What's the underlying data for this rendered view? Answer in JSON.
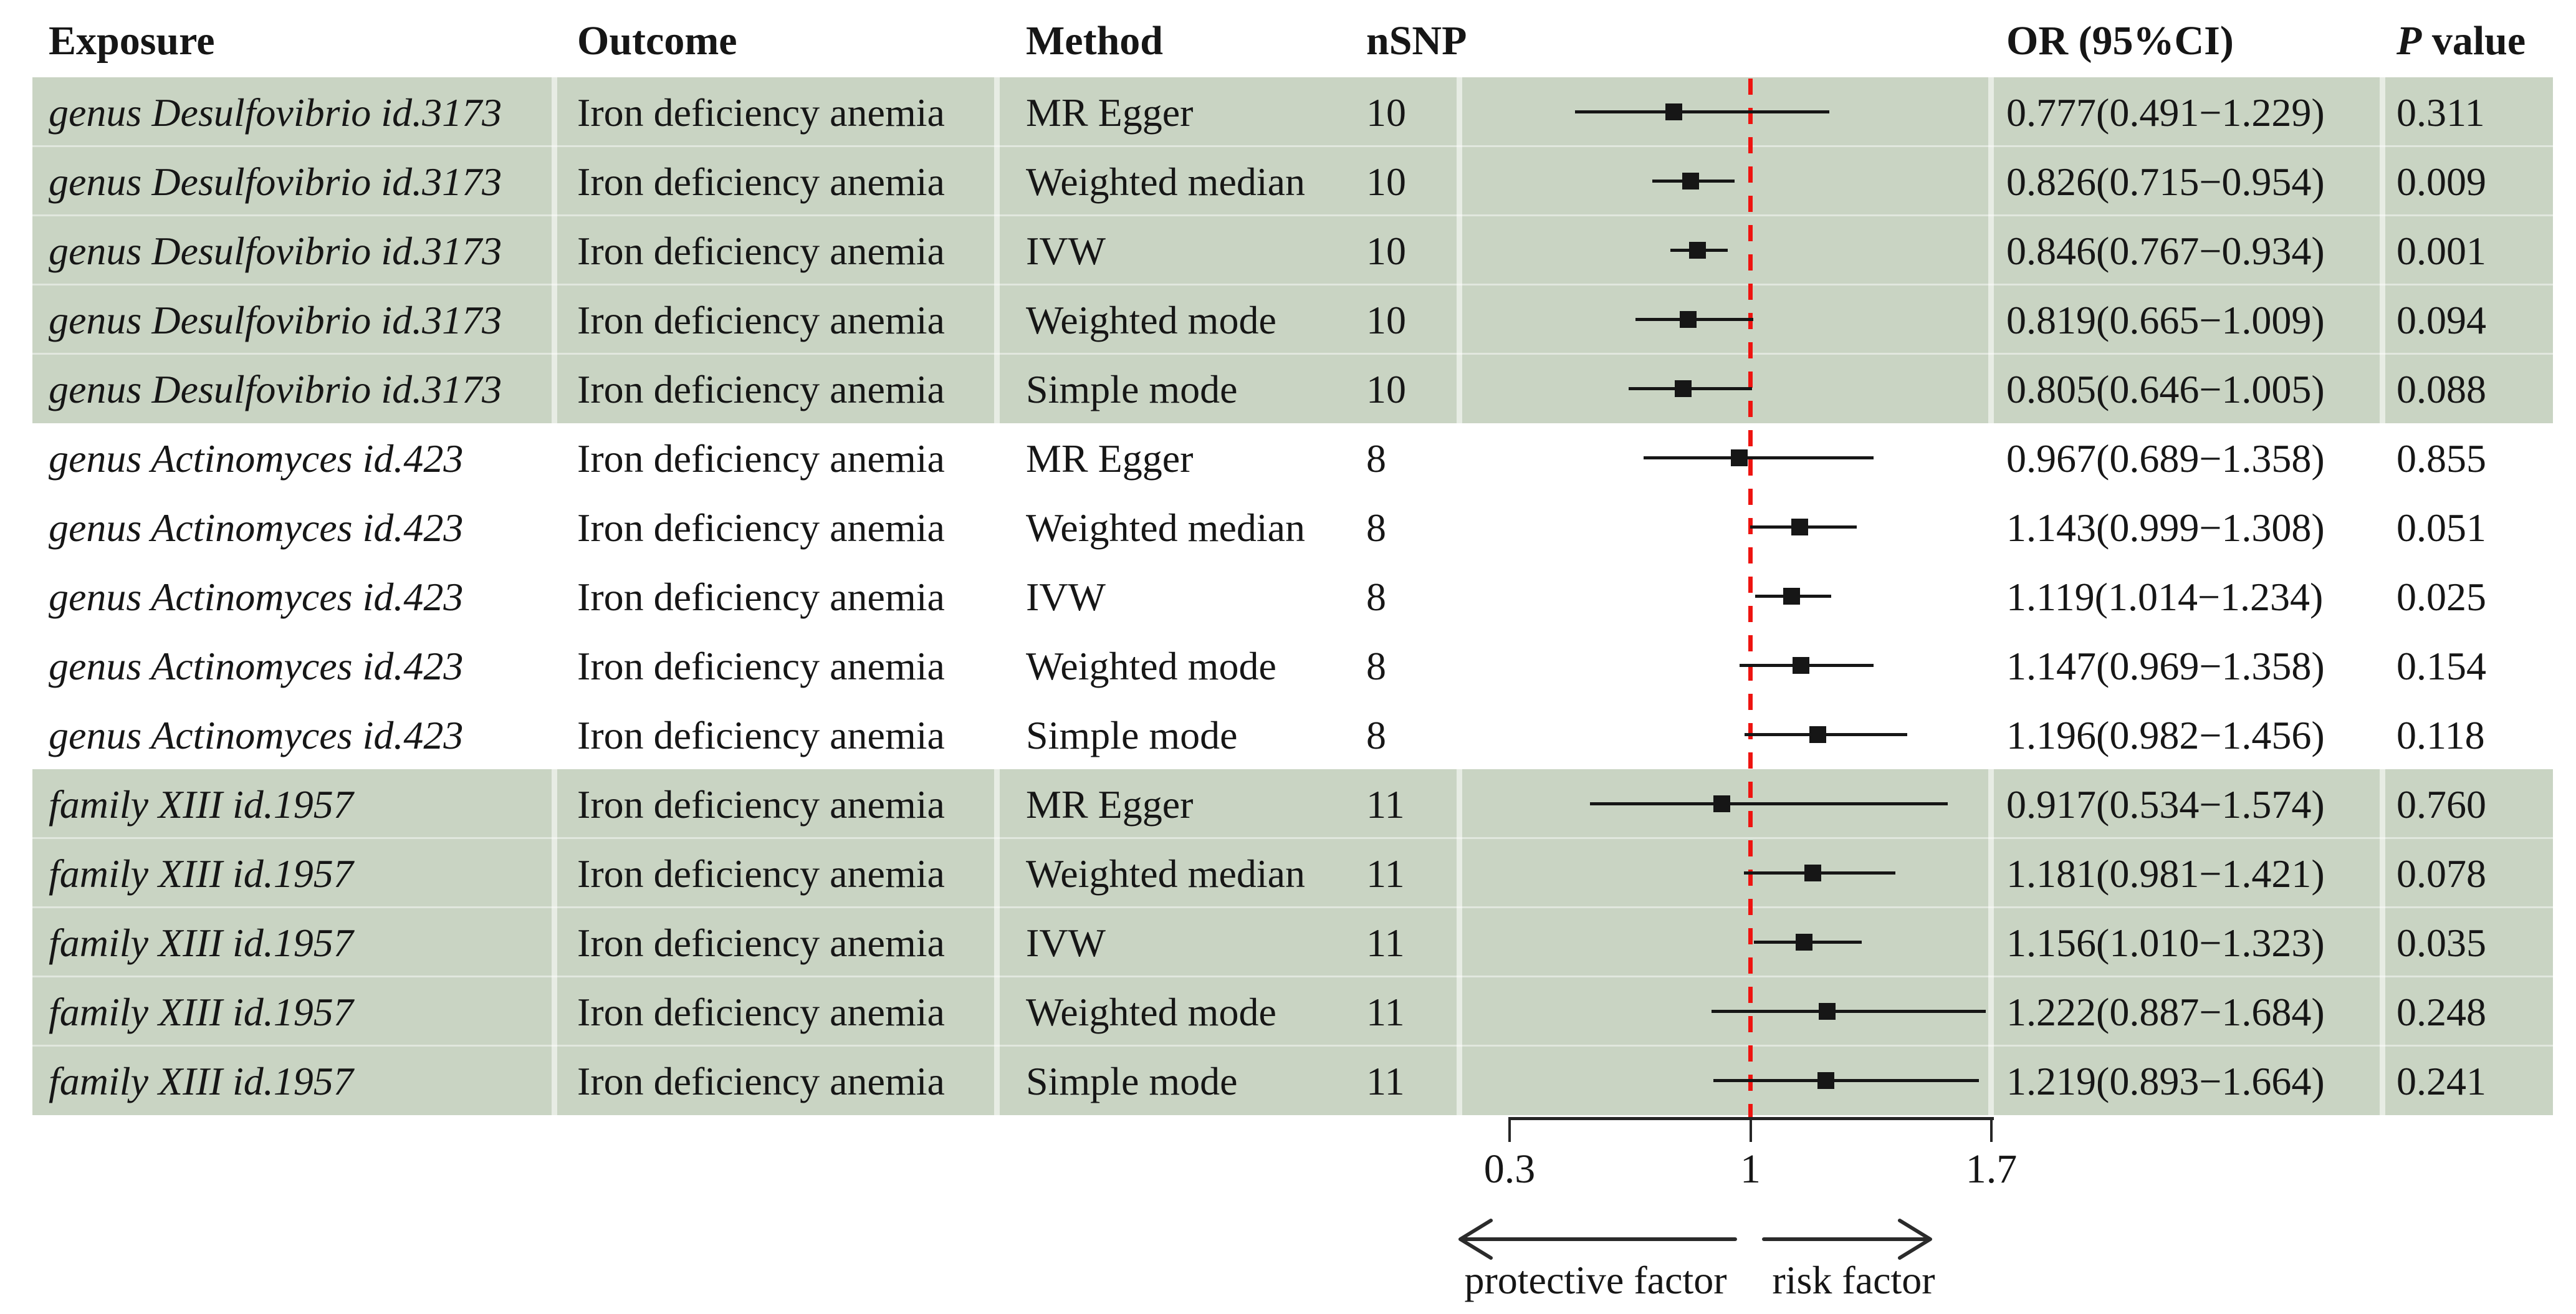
{
  "header": {
    "exposure": "Exposure",
    "outcome": "Outcome",
    "method": "Method",
    "nsnp": "nSNP",
    "or_ci": "OR (95%CI)",
    "p_italic": "P",
    "p_rest": "value"
  },
  "annotations": {
    "protective_label": "protective factor",
    "risk_label": "risk factor"
  },
  "colors": {
    "band_green": "#c9d4c3",
    "reference_line_red": "#ee1410",
    "marker_black": "#161616",
    "axis_gray": "#262626",
    "text": "#161616"
  },
  "chart_data": {
    "type": "forest",
    "orientation": "horizontal",
    "x_axis": {
      "min": 0.3,
      "max": 1.7,
      "ticks": [
        {
          "value": 0.3,
          "label": "0.3"
        },
        {
          "value": 1,
          "label": "1"
        },
        {
          "value": 1.7,
          "label": "1.7"
        }
      ],
      "reference_line": 1
    },
    "columns": [
      "Exposure",
      "Outcome",
      "Method",
      "nSNP",
      "OR (95%CI)",
      "P value"
    ],
    "rows": [
      {
        "exposure": "genus Desulfovibrio id.3173",
        "outcome": "Iron deficiency anemia",
        "method": "MR Egger",
        "nsnp": "10",
        "or": 0.777,
        "ci_low": 0.491,
        "ci_high": 1.229,
        "or_ci": "0.777(0.491−1.229)",
        "p": "0.311",
        "group": 1,
        "shaded": true
      },
      {
        "exposure": "genus Desulfovibrio id.3173",
        "outcome": "Iron deficiency anemia",
        "method": "Weighted median",
        "nsnp": "10",
        "or": 0.826,
        "ci_low": 0.715,
        "ci_high": 0.954,
        "or_ci": "0.826(0.715−0.954)",
        "p": "0.009",
        "group": 1,
        "shaded": true
      },
      {
        "exposure": "genus Desulfovibrio id.3173",
        "outcome": "Iron deficiency anemia",
        "method": "IVW",
        "nsnp": "10",
        "or": 0.846,
        "ci_low": 0.767,
        "ci_high": 0.934,
        "or_ci": "0.846(0.767−0.934)",
        "p": "0.001",
        "group": 1,
        "shaded": true
      },
      {
        "exposure": "genus Desulfovibrio id.3173",
        "outcome": "Iron deficiency anemia",
        "method": "Weighted mode",
        "nsnp": "10",
        "or": 0.819,
        "ci_low": 0.665,
        "ci_high": 1.009,
        "or_ci": "0.819(0.665−1.009)",
        "p": "0.094",
        "group": 1,
        "shaded": true
      },
      {
        "exposure": "genus Desulfovibrio id.3173",
        "outcome": "Iron deficiency anemia",
        "method": "Simple mode",
        "nsnp": "10",
        "or": 0.805,
        "ci_low": 0.646,
        "ci_high": 1.005,
        "or_ci": "0.805(0.646−1.005)",
        "p": "0.088",
        "group": 1,
        "shaded": true
      },
      {
        "exposure": "genus Actinomyces id.423",
        "outcome": "Iron deficiency anemia",
        "method": "MR Egger",
        "nsnp": "8",
        "or": 0.967,
        "ci_low": 0.689,
        "ci_high": 1.358,
        "or_ci": "0.967(0.689−1.358)",
        "p": "0.855",
        "group": 2,
        "shaded": false
      },
      {
        "exposure": "genus Actinomyces id.423",
        "outcome": "Iron deficiency anemia",
        "method": "Weighted median",
        "nsnp": "8",
        "or": 1.143,
        "ci_low": 0.999,
        "ci_high": 1.308,
        "or_ci": "1.143(0.999−1.308)",
        "p": "0.051",
        "group": 2,
        "shaded": false
      },
      {
        "exposure": "genus Actinomyces id.423",
        "outcome": "Iron deficiency anemia",
        "method": "IVW",
        "nsnp": "8",
        "or": 1.119,
        "ci_low": 1.014,
        "ci_high": 1.234,
        "or_ci": "1.119(1.014−1.234)",
        "p": "0.025",
        "group": 2,
        "shaded": false
      },
      {
        "exposure": "genus Actinomyces id.423",
        "outcome": "Iron deficiency anemia",
        "method": "Weighted mode",
        "nsnp": "8",
        "or": 1.147,
        "ci_low": 0.969,
        "ci_high": 1.358,
        "or_ci": "1.147(0.969−1.358)",
        "p": "0.154",
        "group": 2,
        "shaded": false
      },
      {
        "exposure": "genus Actinomyces id.423",
        "outcome": "Iron deficiency anemia",
        "method": "Simple mode",
        "nsnp": "8",
        "or": 1.196,
        "ci_low": 0.982,
        "ci_high": 1.456,
        "or_ci": "1.196(0.982−1.456)",
        "p": "0.118",
        "group": 2,
        "shaded": false
      },
      {
        "exposure": "family XIII id.1957",
        "outcome": "Iron deficiency anemia",
        "method": "MR Egger",
        "nsnp": "11",
        "or": 0.917,
        "ci_low": 0.534,
        "ci_high": 1.574,
        "or_ci": "0.917(0.534−1.574)",
        "p": "0.760",
        "group": 3,
        "shaded": true
      },
      {
        "exposure": "family XIII id.1957",
        "outcome": "Iron deficiency anemia",
        "method": "Weighted median",
        "nsnp": "11",
        "or": 1.181,
        "ci_low": 0.981,
        "ci_high": 1.421,
        "or_ci": "1.181(0.981−1.421)",
        "p": "0.078",
        "group": 3,
        "shaded": true
      },
      {
        "exposure": "family XIII id.1957",
        "outcome": "Iron deficiency anemia",
        "method": "IVW",
        "nsnp": "11",
        "or": 1.156,
        "ci_low": 1.01,
        "ci_high": 1.323,
        "or_ci": "1.156(1.010−1.323)",
        "p": "0.035",
        "group": 3,
        "shaded": true
      },
      {
        "exposure": "family XIII id.1957",
        "outcome": "Iron deficiency anemia",
        "method": "Weighted mode",
        "nsnp": "11",
        "or": 1.222,
        "ci_low": 0.887,
        "ci_high": 1.684,
        "or_ci": "1.222(0.887−1.684)",
        "p": "0.248",
        "group": 3,
        "shaded": true
      },
      {
        "exposure": "family XIII id.1957",
        "outcome": "Iron deficiency anemia",
        "method": "Simple mode",
        "nsnp": "11",
        "or": 1.219,
        "ci_low": 0.893,
        "ci_high": 1.664,
        "or_ci": "1.219(0.893−1.664)",
        "p": "0.241",
        "group": 3,
        "shaded": true
      }
    ]
  }
}
